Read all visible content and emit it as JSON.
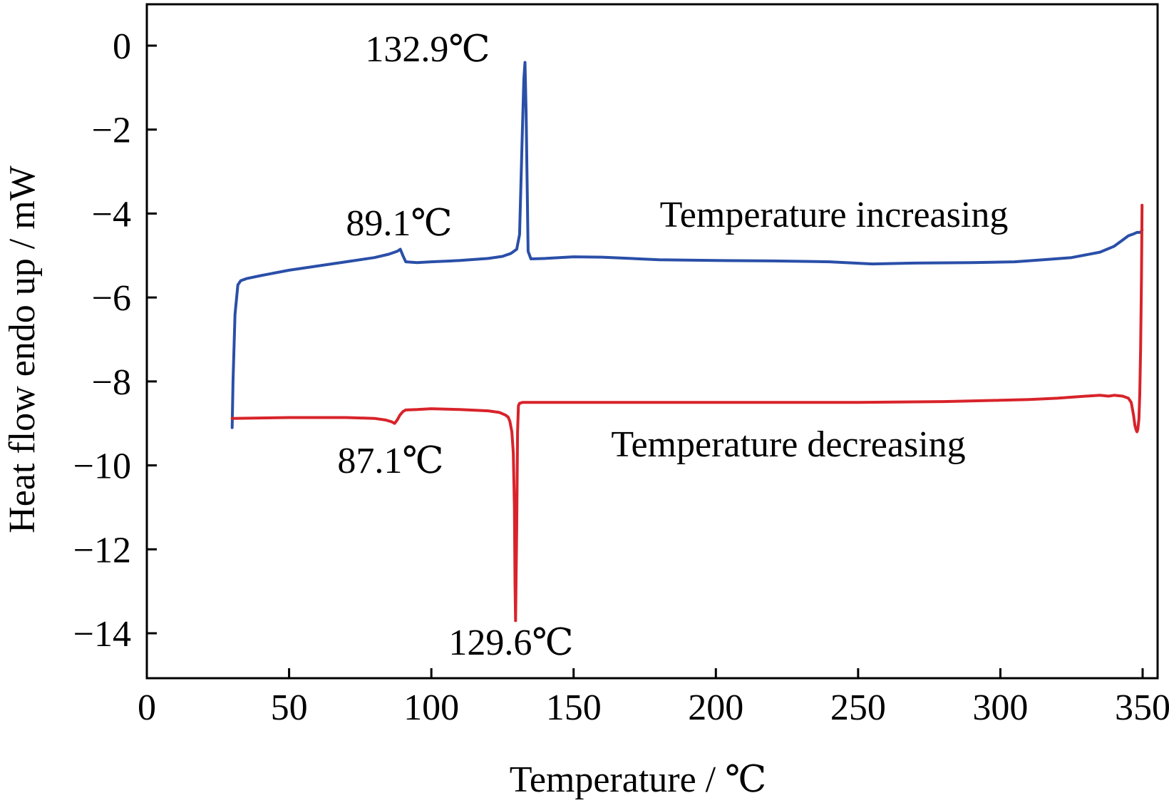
{
  "chart_data": {
    "type": "line",
    "title": "",
    "xlabel": "Temperature / ℃",
    "ylabel": "Heat flow endo up / mW",
    "xlim": [
      0,
      352
    ],
    "ylim": [
      -15,
      1
    ],
    "xticks": [
      0,
      50,
      100,
      150,
      200,
      250,
      300,
      350
    ],
    "yticks": [
      0,
      -2,
      -4,
      -6,
      -8,
      -10,
      -12,
      -14
    ],
    "xtick_labels": [
      "0",
      "50",
      "100",
      "150",
      "200",
      "250",
      "300",
      "350"
    ],
    "ytick_labels": [
      "0",
      "−2",
      "−4",
      "−6",
      "−8",
      "−10",
      "−12",
      "−14"
    ],
    "grid": false,
    "legend": "none",
    "series": [
      {
        "name": "Temperature increasing",
        "color": "#2a4fa8",
        "x": [
          30,
          30.3,
          31,
          32,
          33,
          35,
          40,
          50,
          60,
          70,
          80,
          85,
          88,
          89.1,
          90,
          91,
          95,
          100,
          110,
          120,
          125,
          128,
          130,
          131,
          132,
          132.5,
          132.9,
          133.3,
          134,
          135,
          140,
          150,
          160,
          170,
          180,
          200,
          220,
          240,
          255,
          270,
          290,
          305,
          315,
          325,
          335,
          340,
          343,
          345,
          347,
          348,
          349,
          349.3,
          349.5,
          349.6,
          349.8
        ],
        "y": [
          -9.1,
          -8.0,
          -6.4,
          -5.7,
          -5.6,
          -5.55,
          -5.48,
          -5.35,
          -5.25,
          -5.15,
          -5.05,
          -4.97,
          -4.9,
          -4.85,
          -5.0,
          -5.15,
          -5.17,
          -5.15,
          -5.12,
          -5.07,
          -5.02,
          -4.95,
          -4.85,
          -4.5,
          -2.0,
          -0.8,
          -0.4,
          -1.6,
          -4.9,
          -5.08,
          -5.07,
          -5.03,
          -5.04,
          -5.07,
          -5.1,
          -5.12,
          -5.13,
          -5.15,
          -5.2,
          -5.18,
          -5.17,
          -5.15,
          -5.1,
          -5.05,
          -4.92,
          -4.78,
          -4.63,
          -4.53,
          -4.48,
          -4.45,
          -4.45,
          -4.44,
          -4.43,
          -4.41,
          -4.39
        ]
      },
      {
        "name": "Temperature decreasing",
        "color": "#d8232a",
        "x": [
          349.8,
          349.6,
          349.3,
          349,
          348.7,
          348.3,
          348,
          347.7,
          347.3,
          346.8,
          346,
          345,
          343,
          340,
          338,
          335,
          330,
          320,
          310,
          300,
          280,
          250,
          220,
          200,
          180,
          160,
          140,
          135,
          132,
          131,
          130.6,
          130.3,
          130.0,
          129.6,
          129.4,
          129.2,
          128.8,
          128.3,
          127.6,
          127,
          126,
          124,
          120,
          110,
          100,
          95,
          91,
          90,
          89,
          88,
          87.1,
          86,
          84,
          80,
          70,
          60,
          50,
          40,
          30
        ],
        "y": [
          -3.8,
          -5.5,
          -7.2,
          -8.3,
          -8.9,
          -9.15,
          -9.2,
          -9.15,
          -9.05,
          -8.8,
          -8.5,
          -8.4,
          -8.35,
          -8.33,
          -8.35,
          -8.33,
          -8.35,
          -8.4,
          -8.43,
          -8.45,
          -8.48,
          -8.5,
          -8.5,
          -8.5,
          -8.5,
          -8.5,
          -8.5,
          -8.5,
          -8.5,
          -8.52,
          -8.58,
          -9.2,
          -11.5,
          -13.7,
          -12.8,
          -11.0,
          -9.7,
          -9.2,
          -8.95,
          -8.85,
          -8.8,
          -8.74,
          -8.7,
          -8.67,
          -8.65,
          -8.67,
          -8.68,
          -8.72,
          -8.8,
          -8.92,
          -9.0,
          -8.96,
          -8.92,
          -8.88,
          -8.86,
          -8.86,
          -8.86,
          -8.87,
          -8.88
        ]
      }
    ],
    "annotations": [
      {
        "text": "132.9℃",
        "x": 132.9,
        "y": -0.4
      },
      {
        "text": "89.1℃",
        "x": 89.1,
        "y": -4.85
      },
      {
        "text": "87.1℃",
        "x": 87.1,
        "y": -9.0
      },
      {
        "text": "129.6℃",
        "x": 129.6,
        "y": -13.7
      },
      {
        "text": "Temperature increasing",
        "x": 240,
        "y": -4.0
      },
      {
        "text": "Temperature decreasing",
        "x": 230,
        "y": -9.3
      }
    ]
  }
}
